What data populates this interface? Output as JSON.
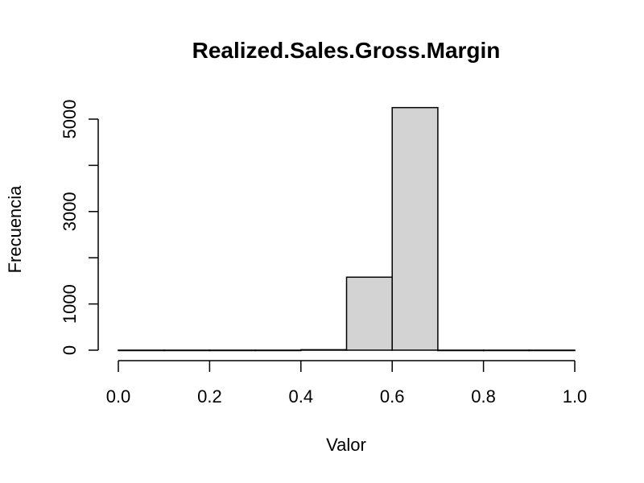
{
  "chart_data": {
    "type": "bar",
    "title": "Realized.Sales.Gross.Margin",
    "xlabel": "Valor",
    "ylabel": "Frecuencia",
    "xlim": [
      0,
      1
    ],
    "ylim": [
      0,
      5250
    ],
    "x_ticks": [
      "0.0",
      "0.2",
      "0.4",
      "0.6",
      "0.8",
      "1.0"
    ],
    "y_ticks": [
      "0",
      "1000",
      "3000",
      "5000"
    ],
    "bins": [
      {
        "start": 0.0,
        "end": 0.1,
        "count": 0
      },
      {
        "start": 0.1,
        "end": 0.2,
        "count": 0
      },
      {
        "start": 0.2,
        "end": 0.3,
        "count": 0
      },
      {
        "start": 0.3,
        "end": 0.4,
        "count": 0
      },
      {
        "start": 0.4,
        "end": 0.5,
        "count": 10
      },
      {
        "start": 0.5,
        "end": 0.6,
        "count": 1580
      },
      {
        "start": 0.6,
        "end": 0.7,
        "count": 5250
      },
      {
        "start": 0.7,
        "end": 0.8,
        "count": 0
      },
      {
        "start": 0.8,
        "end": 0.9,
        "count": 0
      },
      {
        "start": 0.9,
        "end": 1.0,
        "count": 0
      }
    ],
    "bar_color": "#d3d3d3",
    "grid": false
  }
}
